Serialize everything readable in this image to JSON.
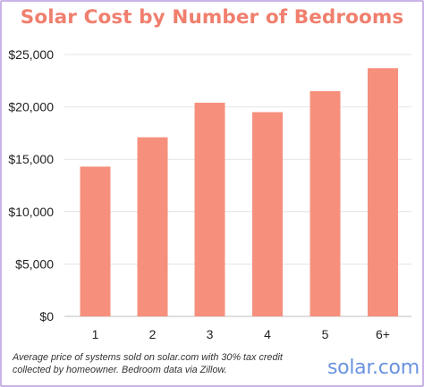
{
  "chart_data": {
    "type": "bar",
    "title": "Solar Cost by Number of Bedrooms",
    "xlabel": "",
    "ylabel": "",
    "categories": [
      "1",
      "2",
      "3",
      "4",
      "5",
      "6+"
    ],
    "values": [
      14300,
      17100,
      20400,
      19500,
      21500,
      23700
    ],
    "ylim": [
      0,
      25000
    ],
    "yticks": [
      "$0",
      "$5,000",
      "$10,000",
      "$15,000",
      "$20,000",
      "$25,000"
    ],
    "grid": true,
    "bar_color": "#f6907d",
    "title_color": "#f07f6e"
  },
  "footnote": "Average price of systems sold on solar.com with 30% tax credit collected by homeowner. Bedroom data via Zillow.",
  "brand": "solar.com",
  "brand_color": "#6a93e0"
}
